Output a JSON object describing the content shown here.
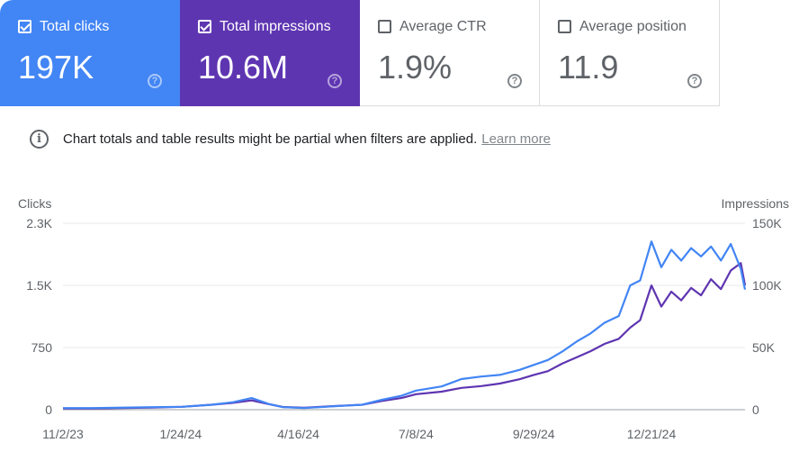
{
  "metrics": [
    {
      "label": "Total clicks",
      "value": "197K",
      "checked": true,
      "color": "#4285f4"
    },
    {
      "label": "Total impressions",
      "value": "10.6M",
      "checked": true,
      "color": "#5e35b1"
    },
    {
      "label": "Average CTR",
      "value": "1.9%",
      "checked": false,
      "color": "#ffffff"
    },
    {
      "label": "Average position",
      "value": "11.9",
      "checked": false,
      "color": "#ffffff"
    }
  ],
  "notice": {
    "text": "Chart totals and table results might be partial when filters are applied.",
    "link": "Learn more",
    "help_symbol": "?",
    "info_symbol": "i"
  },
  "chart_data": {
    "type": "line",
    "x_ticks": [
      "11/2/23",
      "1/24/24",
      "4/16/24",
      "7/8/24",
      "9/29/24",
      "12/21/24"
    ],
    "x_range": [
      "2023-11-02",
      "2025-02-25"
    ],
    "left_axis": {
      "label": "Clicks",
      "ticks": [
        "0",
        "750",
        "1.5K",
        "2.3K"
      ],
      "tick_values": [
        0,
        750,
        1500,
        2250
      ],
      "range": [
        0,
        2250
      ]
    },
    "right_axis": {
      "label": "Impressions",
      "ticks": [
        "0",
        "50K",
        "100K",
        "150K"
      ],
      "tick_values": [
        0,
        50000,
        100000,
        150000
      ],
      "range": [
        0,
        150000
      ]
    },
    "grid": true,
    "series": [
      {
        "name": "Total clicks",
        "axis": "left",
        "color": "#4285f4",
        "x": [
          "2023-11-02",
          "2023-11-23",
          "2023-12-14",
          "2024-01-04",
          "2024-01-25",
          "2024-02-15",
          "2024-03-01",
          "2024-03-14",
          "2024-03-26",
          "2024-04-05",
          "2024-04-20",
          "2024-05-10",
          "2024-05-31",
          "2024-06-14",
          "2024-06-28",
          "2024-07-08",
          "2024-07-26",
          "2024-08-09",
          "2024-08-23",
          "2024-09-05",
          "2024-09-19",
          "2024-09-29",
          "2024-10-09",
          "2024-10-19",
          "2024-10-29",
          "2024-11-08",
          "2024-11-18",
          "2024-11-28",
          "2024-12-06",
          "2024-12-13",
          "2024-12-21",
          "2024-12-28",
          "2025-01-04",
          "2025-01-11",
          "2025-01-18",
          "2025-01-25",
          "2025-02-01",
          "2025-02-08",
          "2025-02-15",
          "2025-02-22",
          "2025-02-25"
        ],
        "values": [
          20,
          20,
          25,
          30,
          35,
          60,
          90,
          140,
          70,
          30,
          20,
          40,
          60,
          120,
          170,
          230,
          280,
          370,
          400,
          420,
          480,
          540,
          600,
          700,
          820,
          920,
          1050,
          1130,
          1500,
          1560,
          2030,
          1720,
          1930,
          1800,
          1950,
          1850,
          1970,
          1800,
          2000,
          1700,
          1450
        ]
      },
      {
        "name": "Total impressions",
        "axis": "right",
        "color": "#5e35b1",
        "x": [
          "2023-11-02",
          "2023-11-23",
          "2023-12-14",
          "2024-01-04",
          "2024-01-25",
          "2024-02-15",
          "2024-03-01",
          "2024-03-14",
          "2024-03-26",
          "2024-04-05",
          "2024-04-20",
          "2024-05-10",
          "2024-05-31",
          "2024-06-14",
          "2024-06-28",
          "2024-07-08",
          "2024-07-26",
          "2024-08-09",
          "2024-08-23",
          "2024-09-05",
          "2024-09-19",
          "2024-09-29",
          "2024-10-09",
          "2024-10-19",
          "2024-10-29",
          "2024-11-08",
          "2024-11-18",
          "2024-11-28",
          "2024-12-06",
          "2024-12-13",
          "2024-12-21",
          "2024-12-28",
          "2025-01-04",
          "2025-01-11",
          "2025-01-18",
          "2025-01-25",
          "2025-02-01",
          "2025-02-08",
          "2025-02-15",
          "2025-02-22",
          "2025-02-25"
        ],
        "values": [
          1000,
          1000,
          1300,
          1700,
          2300,
          4000,
          5500,
          7500,
          4500,
          2200,
          1500,
          2800,
          4000,
          7000,
          9500,
          12500,
          14500,
          17500,
          19000,
          21000,
          24500,
          28000,
          31000,
          37000,
          42000,
          47000,
          53000,
          57000,
          66000,
          72000,
          100000,
          83000,
          95000,
          88000,
          98000,
          92000,
          105000,
          97000,
          112000,
          118000,
          100000
        ]
      }
    ]
  }
}
